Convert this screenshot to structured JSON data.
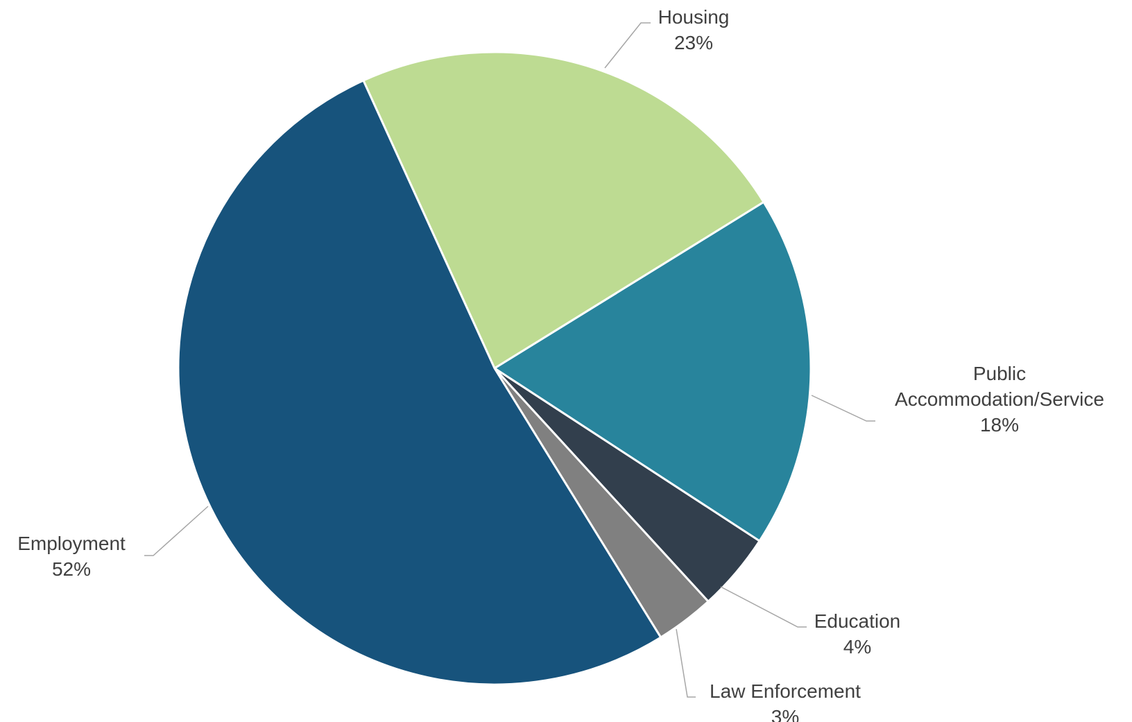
{
  "chart_data": {
    "type": "pie",
    "title": "",
    "start_angle_deg": -24.5,
    "direction": "clockwise",
    "slices": [
      {
        "label": "Housing",
        "value": 23,
        "pct_text": "23%",
        "color": "#bddb92"
      },
      {
        "label": "Public Accommodation/Service",
        "label_lines": [
          "Public",
          "Accommodation/Service"
        ],
        "value": 18,
        "pct_text": "18%",
        "color": "#28849c"
      },
      {
        "label": "Education",
        "value": 4,
        "pct_text": "4%",
        "color": "#323f4d"
      },
      {
        "label": "Law Enforcement",
        "value": 3,
        "pct_text": "3%",
        "color": "#808080"
      },
      {
        "label": "Employment",
        "value": 52,
        "pct_text": "52%",
        "color": "#17537c"
      }
    ],
    "legend": "none",
    "data_labels": "outside with leader lines"
  }
}
